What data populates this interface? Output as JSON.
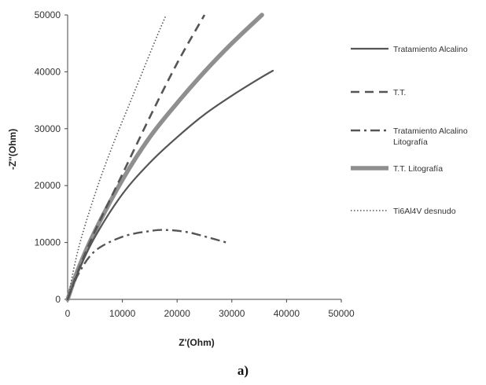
{
  "caption": "a)",
  "chart_data": {
    "type": "line",
    "title": "",
    "xlabel": "Z'(Ohm)",
    "ylabel": "-Z''(Ohm)",
    "xlim": [
      0,
      50000
    ],
    "ylim": [
      0,
      50000
    ],
    "xticks": [
      0,
      10000,
      20000,
      30000,
      40000,
      50000
    ],
    "yticks": [
      0,
      10000,
      20000,
      30000,
      40000,
      50000
    ],
    "grid": false,
    "legend_position": "right",
    "series": [
      {
        "name": "Tratamiento Alcalino",
        "style": "solid-thin",
        "color": "#555555",
        "x": [
          0,
          2000,
          5000,
          10000,
          15000,
          20000,
          25000,
          30000,
          35000,
          37500
        ],
        "y": [
          0,
          5000,
          11000,
          18500,
          24000,
          28500,
          32500,
          35800,
          38800,
          40200
        ]
      },
      {
        "name": "T.T.",
        "style": "dashed",
        "color": "#555555",
        "x": [
          0,
          2000,
          5000,
          10000,
          15000,
          20000,
          25000
        ],
        "y": [
          0,
          5200,
          12000,
          22000,
          32000,
          41500,
          50000
        ]
      },
      {
        "name": "Tratamiento Alcalino Litografía",
        "style": "dashdot",
        "color": "#555555",
        "x": [
          0,
          2000,
          5000,
          10000,
          15000,
          18000,
          22000,
          26000,
          29000
        ],
        "y": [
          0,
          4500,
          8500,
          11000,
          12000,
          12200,
          11800,
          10800,
          10000
        ]
      },
      {
        "name": "T.T. Litografía",
        "style": "solid-thick",
        "color": "#8f8f8f",
        "x": [
          0,
          2000,
          5000,
          10000,
          15000,
          20000,
          25000,
          30000,
          35500
        ],
        "y": [
          0,
          5500,
          12000,
          21000,
          28500,
          34500,
          40000,
          45000,
          50000
        ]
      },
      {
        "name": "Ti6Al4V desnudo",
        "style": "dotted",
        "color": "#555555",
        "x": [
          0,
          2000,
          5000,
          8000,
          12000,
          16000,
          18000
        ],
        "y": [
          0,
          9000,
          18500,
          26500,
          36000,
          45500,
          50000
        ]
      }
    ]
  }
}
